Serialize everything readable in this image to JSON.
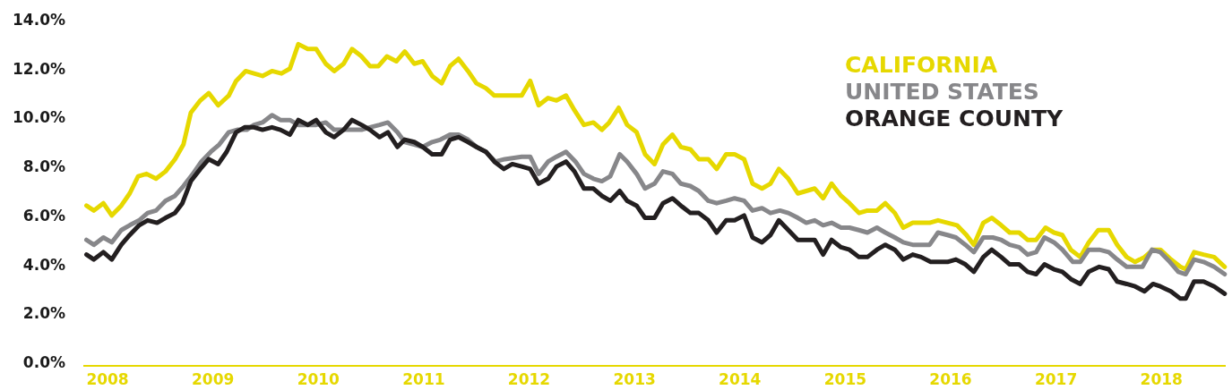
{
  "chart_data": {
    "type": "line",
    "xlim": [
      2007.77,
      2018.61
    ],
    "xticks": [
      2008,
      2009,
      2010,
      2011,
      2012,
      2013,
      2014,
      2015,
      2016,
      2017,
      2018
    ],
    "ylim": [
      0,
      14
    ],
    "yticks": [
      {
        "value": 0,
        "label": "0.0%"
      },
      {
        "value": 2,
        "label": "2.0%"
      },
      {
        "value": 4,
        "label": "4.0%"
      },
      {
        "value": 6,
        "label": "6.0%"
      },
      {
        "value": 8,
        "label": "8.0%"
      },
      {
        "value": 10,
        "label": "10.0%"
      },
      {
        "value": 12,
        "label": "12.0%"
      },
      {
        "value": 14,
        "label": "14.0%"
      }
    ],
    "grid": false,
    "legend": "top right",
    "line_style": "solid",
    "series": [
      {
        "name": "CALIFORNIA",
        "color": "#e6d800",
        "x": [
          2007.8,
          2007.87,
          2007.96,
          2008.04,
          2008.13,
          2008.21,
          2008.29,
          2008.37,
          2008.46,
          2008.55,
          2008.64,
          2008.72,
          2008.79,
          2008.88,
          2008.96,
          2009.05,
          2009.15,
          2009.22,
          2009.31,
          2009.39,
          2009.47,
          2009.56,
          2009.65,
          2009.73,
          2009.81,
          2009.9,
          2009.98,
          2010.07,
          2010.15,
          2010.24,
          2010.32,
          2010.41,
          2010.49,
          2010.57,
          2010.65,
          2010.74,
          2010.82,
          2010.91,
          2010.99,
          2011.08,
          2011.17,
          2011.25,
          2011.33,
          2011.42,
          2011.5,
          2011.59,
          2011.67,
          2011.93,
          2012.01,
          2012.09,
          2012.18,
          2012.26,
          2012.35,
          2012.43,
          2012.52,
          2012.61,
          2012.69,
          2012.76,
          2012.85,
          2012.93,
          2013.02,
          2013.1,
          2013.19,
          2013.27,
          2013.36,
          2013.44,
          2013.53,
          2013.61,
          2013.7,
          2013.78,
          2013.87,
          2013.95,
          2014.04,
          2014.12,
          2014.21,
          2014.29,
          2014.37,
          2014.46,
          2014.55,
          2014.63,
          2014.71,
          2014.79,
          2014.87,
          2014.96,
          2015.04,
          2015.13,
          2015.21,
          2015.3,
          2015.38,
          2015.47,
          2015.55,
          2015.64,
          2015.8,
          2015.88,
          2015.97,
          2016.06,
          2016.15,
          2016.22,
          2016.31,
          2016.39,
          2016.48,
          2016.56,
          2016.65,
          2016.73,
          2016.81,
          2016.9,
          2016.98,
          2017.06,
          2017.14,
          2017.23,
          2017.31,
          2017.4,
          2017.5,
          2017.58,
          2017.67,
          2017.75,
          2017.84,
          2017.92,
          2017.99,
          2018.09,
          2018.18,
          2018.23,
          2018.31,
          2018.4,
          2018.5,
          2018.6
        ],
        "values": [
          6.4,
          6.2,
          6.5,
          6.0,
          6.4,
          6.9,
          7.6,
          7.7,
          7.5,
          7.8,
          8.3,
          8.9,
          10.2,
          10.7,
          11.0,
          10.5,
          10.9,
          11.5,
          11.9,
          11.8,
          11.7,
          11.9,
          11.8,
          12.0,
          13.0,
          12.8,
          12.8,
          12.2,
          11.9,
          12.2,
          12.8,
          12.5,
          12.1,
          12.1,
          12.5,
          12.3,
          12.7,
          12.2,
          12.3,
          11.7,
          11.4,
          12.1,
          12.4,
          11.9,
          11.4,
          11.2,
          10.9,
          10.9,
          11.5,
          10.5,
          10.8,
          10.7,
          10.9,
          10.3,
          9.7,
          9.8,
          9.5,
          9.8,
          10.4,
          9.7,
          9.4,
          8.5,
          8.1,
          8.9,
          9.3,
          8.8,
          8.7,
          8.3,
          8.3,
          7.9,
          8.5,
          8.5,
          8.3,
          7.3,
          7.1,
          7.3,
          7.9,
          7.5,
          6.9,
          7.0,
          7.1,
          6.7,
          7.3,
          6.8,
          6.5,
          6.1,
          6.2,
          6.2,
          6.5,
          6.1,
          5.5,
          5.7,
          5.7,
          5.8,
          5.7,
          5.6,
          5.2,
          4.8,
          5.7,
          5.9,
          5.6,
          5.3,
          5.3,
          5.0,
          5.0,
          5.5,
          5.3,
          5.2,
          4.6,
          4.3,
          4.9,
          5.4,
          5.4,
          4.8,
          4.3,
          4.1,
          4.3,
          4.6,
          4.6,
          4.2,
          3.9,
          3.8,
          4.5,
          4.4,
          4.3,
          3.9
        ]
      },
      {
        "name": "UNITED STATES",
        "color": "#87878a",
        "x": [
          2007.8,
          2007.87,
          2007.96,
          2008.04,
          2008.13,
          2008.21,
          2008.3,
          2008.38,
          2008.46,
          2008.55,
          2008.64,
          2008.72,
          2008.81,
          2008.89,
          2008.98,
          2009.06,
          2009.15,
          2009.23,
          2009.32,
          2009.39,
          2009.47,
          2009.56,
          2009.64,
          2009.73,
          2009.81,
          2009.98,
          2010.07,
          2010.15,
          2010.24,
          2010.32,
          2010.41,
          2010.49,
          2010.58,
          2010.66,
          2010.75,
          2010.82,
          2010.91,
          2010.99,
          2011.08,
          2011.16,
          2011.25,
          2011.33,
          2011.42,
          2011.5,
          2011.59,
          2011.68,
          2011.77,
          2011.93,
          2012.01,
          2012.09,
          2012.18,
          2012.26,
          2012.35,
          2012.44,
          2012.52,
          2012.61,
          2012.69,
          2012.77,
          2012.86,
          2012.93,
          2013.02,
          2013.1,
          2013.19,
          2013.27,
          2013.36,
          2013.44,
          2013.53,
          2013.61,
          2013.7,
          2013.78,
          2013.87,
          2013.95,
          2014.04,
          2014.12,
          2014.21,
          2014.29,
          2014.38,
          2014.46,
          2014.55,
          2014.63,
          2014.71,
          2014.79,
          2014.87,
          2014.96,
          2015.04,
          2015.13,
          2015.21,
          2015.3,
          2015.38,
          2015.47,
          2015.55,
          2015.64,
          2015.8,
          2015.88,
          2015.97,
          2016.05,
          2016.14,
          2016.22,
          2016.31,
          2016.4,
          2016.48,
          2016.56,
          2016.65,
          2016.73,
          2016.81,
          2016.89,
          2016.98,
          2017.06,
          2017.16,
          2017.23,
          2017.31,
          2017.41,
          2017.5,
          2017.58,
          2017.67,
          2017.82,
          2017.91,
          2017.99,
          2018.08,
          2018.16,
          2018.23,
          2018.31,
          2018.4,
          2018.5,
          2018.6
        ],
        "values": [
          5.0,
          4.8,
          5.1,
          4.9,
          5.4,
          5.6,
          5.8,
          6.1,
          6.2,
          6.6,
          6.8,
          7.2,
          7.7,
          8.2,
          8.6,
          8.9,
          9.4,
          9.5,
          9.5,
          9.7,
          9.8,
          10.1,
          9.9,
          9.9,
          9.7,
          9.7,
          9.8,
          9.5,
          9.5,
          9.5,
          9.5,
          9.6,
          9.7,
          9.8,
          9.4,
          9.0,
          8.9,
          8.8,
          9.0,
          9.1,
          9.3,
          9.3,
          9.1,
          8.8,
          8.6,
          8.2,
          8.3,
          8.4,
          8.4,
          7.7,
          8.2,
          8.4,
          8.6,
          8.2,
          7.7,
          7.5,
          7.4,
          7.6,
          8.5,
          8.2,
          7.7,
          7.1,
          7.3,
          7.8,
          7.7,
          7.3,
          7.2,
          7.0,
          6.6,
          6.5,
          6.6,
          6.7,
          6.6,
          6.2,
          6.3,
          6.1,
          6.2,
          6.1,
          5.9,
          5.7,
          5.8,
          5.6,
          5.7,
          5.5,
          5.5,
          5.4,
          5.3,
          5.5,
          5.3,
          5.1,
          4.9,
          4.8,
          4.8,
          5.3,
          5.2,
          5.1,
          4.8,
          4.5,
          5.1,
          5.1,
          5.0,
          4.8,
          4.7,
          4.4,
          4.5,
          5.1,
          4.9,
          4.6,
          4.1,
          4.1,
          4.6,
          4.6,
          4.5,
          4.2,
          3.9,
          3.9,
          4.6,
          4.5,
          4.1,
          3.7,
          3.6,
          4.2,
          4.1,
          3.9,
          3.6
        ]
      },
      {
        "name": "ORANGE COUNTY",
        "color": "#231f20",
        "x": [
          2007.8,
          2007.87,
          2007.96,
          2008.04,
          2008.13,
          2008.21,
          2008.3,
          2008.38,
          2008.47,
          2008.55,
          2008.64,
          2008.71,
          2008.79,
          2008.88,
          2008.96,
          2009.05,
          2009.13,
          2009.22,
          2009.3,
          2009.39,
          2009.47,
          2009.56,
          2009.64,
          2009.73,
          2009.81,
          2009.9,
          2009.98,
          2010.07,
          2010.15,
          2010.24,
          2010.32,
          2010.41,
          2010.49,
          2010.58,
          2010.66,
          2010.75,
          2010.82,
          2010.91,
          2010.99,
          2011.08,
          2011.17,
          2011.25,
          2011.33,
          2011.42,
          2011.5,
          2011.59,
          2011.67,
          2011.76,
          2011.84,
          2011.93,
          2012.01,
          2012.09,
          2012.18,
          2012.26,
          2012.35,
          2012.43,
          2012.52,
          2012.61,
          2012.69,
          2012.77,
          2012.86,
          2012.93,
          2013.02,
          2013.1,
          2013.19,
          2013.27,
          2013.36,
          2013.44,
          2013.53,
          2013.61,
          2013.7,
          2013.78,
          2013.87,
          2013.95,
          2014.04,
          2014.12,
          2014.21,
          2014.29,
          2014.37,
          2014.46,
          2014.55,
          2014.63,
          2014.71,
          2014.79,
          2014.87,
          2014.96,
          2015.04,
          2015.13,
          2015.21,
          2015.3,
          2015.38,
          2015.47,
          2015.55,
          2015.64,
          2015.72,
          2015.81,
          2015.97,
          2016.05,
          2016.14,
          2016.22,
          2016.31,
          2016.39,
          2016.48,
          2016.56,
          2016.65,
          2016.73,
          2016.81,
          2016.89,
          2016.98,
          2017.06,
          2017.14,
          2017.23,
          2017.31,
          2017.41,
          2017.5,
          2017.58,
          2017.67,
          2017.75,
          2017.84,
          2017.92,
          2017.99,
          2018.09,
          2018.18,
          2018.23,
          2018.31,
          2018.4,
          2018.5,
          2018.6
        ],
        "values": [
          4.4,
          4.2,
          4.5,
          4.2,
          4.8,
          5.2,
          5.6,
          5.8,
          5.7,
          5.9,
          6.1,
          6.5,
          7.4,
          7.9,
          8.3,
          8.1,
          8.6,
          9.4,
          9.6,
          9.6,
          9.5,
          9.6,
          9.5,
          9.3,
          9.9,
          9.7,
          9.9,
          9.4,
          9.2,
          9.5,
          9.9,
          9.7,
          9.5,
          9.2,
          9.4,
          8.8,
          9.1,
          9.0,
          8.8,
          8.5,
          8.5,
          9.1,
          9.2,
          9.0,
          8.8,
          8.6,
          8.2,
          7.9,
          8.1,
          8.0,
          7.9,
          7.3,
          7.5,
          8.0,
          8.2,
          7.8,
          7.1,
          7.1,
          6.8,
          6.6,
          7.0,
          6.6,
          6.4,
          5.9,
          5.9,
          6.5,
          6.7,
          6.4,
          6.1,
          6.1,
          5.8,
          5.3,
          5.8,
          5.8,
          6.0,
          5.1,
          4.9,
          5.2,
          5.8,
          5.4,
          5.0,
          5.0,
          5.0,
          4.4,
          5.0,
          4.7,
          4.6,
          4.3,
          4.3,
          4.6,
          4.8,
          4.6,
          4.2,
          4.4,
          4.3,
          4.1,
          4.1,
          4.2,
          4.0,
          3.7,
          4.3,
          4.6,
          4.3,
          4.0,
          4.0,
          3.7,
          3.6,
          4.0,
          3.8,
          3.7,
          3.4,
          3.2,
          3.7,
          3.9,
          3.8,
          3.3,
          3.2,
          3.1,
          2.9,
          3.2,
          3.1,
          2.9,
          2.6,
          2.6,
          3.3,
          3.3,
          3.1,
          2.8
        ]
      }
    ]
  }
}
